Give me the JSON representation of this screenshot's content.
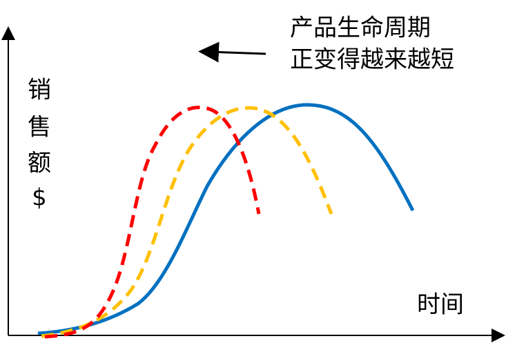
{
  "annotation": {
    "lines": [
      "产品生命周期",
      "正变得越来越短"
    ]
  },
  "y_axis": {
    "label": [
      "销",
      "售",
      "额",
      "$"
    ]
  },
  "x_axis": {
    "label": "时间"
  }
}
